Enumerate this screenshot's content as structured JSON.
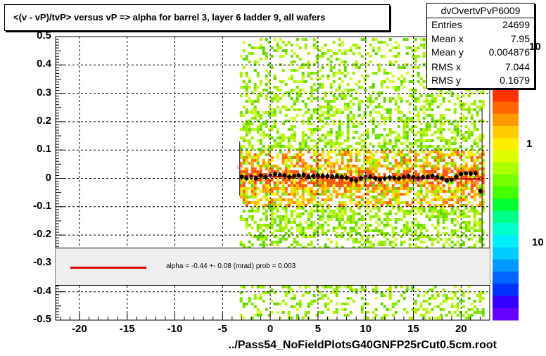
{
  "chart_data": {
    "type": "scatter",
    "title": "<(v - vP)/tvP> versus   vP => alpha for barrel 3, layer 6 ladder 9, all wafers",
    "xlabel": "../Pass54_NoFieldPlotsG40GNFP25rCut0.5cm.root",
    "ylabel": "",
    "xlim": [
      -22.5,
      23
    ],
    "ylim": [
      -0.5,
      0.5
    ],
    "x_ticks": [
      "-20",
      "-15",
      "-10",
      "-5",
      "0",
      "5",
      "10",
      "15",
      "20"
    ],
    "y_ticks": [
      "0.5",
      "0.4",
      "0.3",
      "0.2",
      "0.1",
      "0",
      "-0.1",
      "-0.2",
      "-0.3",
      "-0.4",
      "-0.5"
    ],
    "z_ticks": [
      "10",
      "1",
      "10"
    ],
    "grid": true,
    "profile_points": {
      "x": [
        -3.0,
        -2.5,
        -2.0,
        -1.5,
        -1.0,
        -0.5,
        0.0,
        0.5,
        1.0,
        1.5,
        2.0,
        2.5,
        3.0,
        3.5,
        4.0,
        4.5,
        5.0,
        5.5,
        6.0,
        6.5,
        7.0,
        7.5,
        8.0,
        8.5,
        9.0,
        9.5,
        10.0,
        10.5,
        11.0,
        11.5,
        12.0,
        12.5,
        13.0,
        13.5,
        14.0,
        14.5,
        15.0,
        15.5,
        16.0,
        16.5,
        17.0,
        17.5,
        18.0,
        18.5,
        19.0,
        19.5,
        20.0,
        20.5,
        21.0,
        21.5,
        22.0
      ],
      "y": [
        0.005,
        0.0,
        0.005,
        0.0,
        0.01,
        0.005,
        0.01,
        0.015,
        0.012,
        0.01,
        0.005,
        0.008,
        0.01,
        0.012,
        0.005,
        0.008,
        0.01,
        0.008,
        0.008,
        0.006,
        0.008,
        0.005,
        0.002,
        -0.005,
        -0.008,
        0.0,
        0.004,
        0.006,
        0.0,
        -0.004,
        0.0,
        0.003,
        0.002,
        0.0,
        0.005,
        0.008,
        0.004,
        0.0,
        0.004,
        0.006,
        0.008,
        0.004,
        0.0,
        -0.008,
        -0.005,
        0.005,
        0.015,
        0.018,
        0.016,
        0.018,
        -0.045
      ]
    },
    "outlier_points": {
      "x": [
        -3.2,
        -2.0,
        0.0,
        3.2,
        6.5,
        10.0,
        15.5,
        18.8,
        21.6
      ],
      "y": [
        0.04,
        0.01,
        0.012,
        0.05,
        0.035,
        0.008,
        -0.01,
        0.025,
        -0.015
      ]
    },
    "fit": {
      "type": "line",
      "x": [
        -3.0,
        22.0
      ],
      "y": [
        0.008,
        -0.003
      ],
      "color": "#e00000"
    },
    "colors": {
      "fit": "#e00000",
      "points": "#000000",
      "outliers": "#ff66aa"
    }
  },
  "stats": {
    "name": "dvOvertvPvP6009",
    "rows": [
      {
        "k": "Entries",
        "v": "24699"
      },
      {
        "k": "Mean x",
        "v": "7.95"
      },
      {
        "k": "Mean y",
        "v": "0.004876"
      },
      {
        "k": "RMS x",
        "v": "7.044"
      },
      {
        "k": "RMS y",
        "v": "0.1679"
      }
    ]
  },
  "fit_text": "alpha =   -0.44 +-  0.08 (mrad) prob = 0.003"
}
